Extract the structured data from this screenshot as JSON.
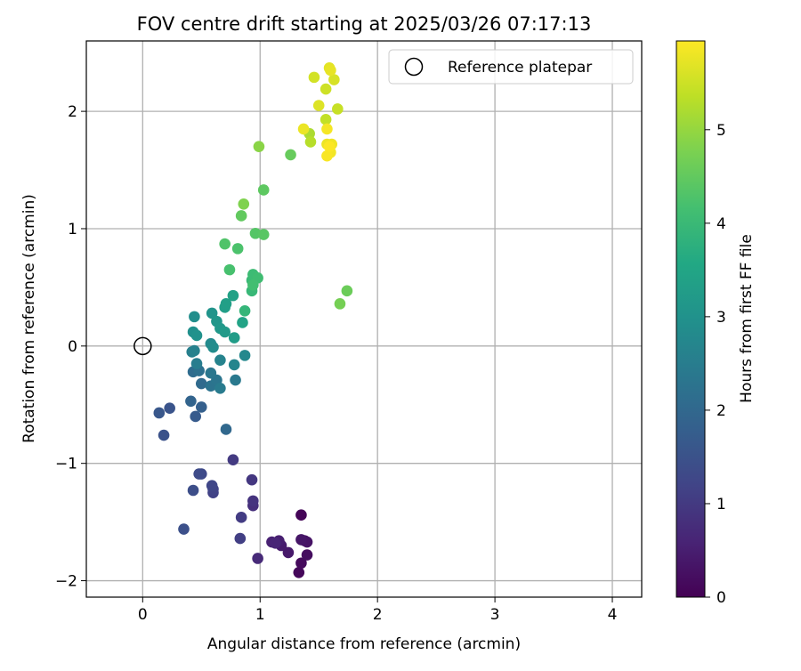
{
  "chart_data": {
    "type": "scatter",
    "title": "FOV centre drift starting at 2025/03/26 07:17:13",
    "xlabel": "Angular distance from reference (arcmin)",
    "ylabel": "Rotation from reference (arcmin)",
    "xlim": [
      -0.48,
      4.25
    ],
    "ylim": [
      -2.14,
      2.6
    ],
    "xticks": [
      0,
      1,
      2,
      3,
      4
    ],
    "yticks": [
      -2,
      -1,
      0,
      1,
      2
    ],
    "grid": true,
    "legend": {
      "position": "top-right",
      "entries": [
        "Reference platepar"
      ]
    },
    "reference_point": {
      "x": 0,
      "y": 0,
      "label": "Reference platepar"
    },
    "colorbar": {
      "label": "Hours from first FF file",
      "colormap": "viridis",
      "range": [
        0,
        5.95
      ],
      "ticks": [
        0,
        1,
        2,
        3,
        4,
        5
      ]
    },
    "points": [
      [
        1.35,
        -1.44,
        0.05
      ],
      [
        1.33,
        -1.93,
        0.1
      ],
      [
        1.35,
        -1.85,
        0.15
      ],
      [
        1.4,
        -1.78,
        0.2
      ],
      [
        1.38,
        -1.66,
        0.25
      ],
      [
        1.4,
        -1.67,
        0.3
      ],
      [
        1.35,
        -1.65,
        0.35
      ],
      [
        1.24,
        -1.76,
        0.4
      ],
      [
        1.18,
        -1.7,
        0.45
      ],
      [
        1.16,
        -1.66,
        0.5
      ],
      [
        1.1,
        -1.67,
        0.55
      ],
      [
        1.13,
        -1.68,
        0.62
      ],
      [
        0.98,
        -1.81,
        0.7
      ],
      [
        0.94,
        -1.36,
        0.8
      ],
      [
        0.94,
        -1.32,
        0.88
      ],
      [
        0.93,
        -1.14,
        0.95
      ],
      [
        0.77,
        -0.97,
        1.0
      ],
      [
        0.84,
        -1.46,
        1.05
      ],
      [
        0.83,
        -1.64,
        1.1
      ],
      [
        0.6,
        -1.25,
        1.15
      ],
      [
        0.6,
        -1.22,
        1.2
      ],
      [
        0.59,
        -1.19,
        1.25
      ],
      [
        0.5,
        -1.09,
        1.3
      ],
      [
        0.48,
        -1.09,
        1.35
      ],
      [
        0.43,
        -1.23,
        1.4
      ],
      [
        0.35,
        -1.56,
        1.45
      ],
      [
        0.18,
        -0.76,
        1.5
      ],
      [
        0.23,
        -0.53,
        1.55
      ],
      [
        0.14,
        -0.57,
        1.6
      ],
      [
        0.45,
        -0.6,
        1.7
      ],
      [
        0.5,
        -0.52,
        1.8
      ],
      [
        0.41,
        -0.47,
        1.9
      ],
      [
        0.71,
        -0.71,
        2.0
      ],
      [
        0.5,
        -0.32,
        2.05
      ],
      [
        0.43,
        -0.22,
        2.1
      ],
      [
        0.48,
        -0.21,
        2.2
      ],
      [
        0.58,
        -0.34,
        2.25
      ],
      [
        0.63,
        -0.29,
        2.3
      ],
      [
        0.58,
        -0.23,
        2.35
      ],
      [
        0.79,
        -0.29,
        2.4
      ],
      [
        0.66,
        -0.36,
        2.45
      ],
      [
        0.46,
        -0.15,
        2.5
      ],
      [
        0.42,
        -0.05,
        2.55
      ],
      [
        0.44,
        -0.04,
        2.6
      ],
      [
        0.66,
        -0.12,
        2.65
      ],
      [
        0.78,
        -0.16,
        2.7
      ],
      [
        0.87,
        -0.08,
        2.75
      ],
      [
        0.58,
        0.02,
        2.8
      ],
      [
        0.6,
        -0.01,
        2.85
      ],
      [
        0.44,
        0.25,
        2.9
      ],
      [
        0.43,
        0.12,
        2.95
      ],
      [
        0.46,
        0.09,
        3.0
      ],
      [
        0.59,
        0.28,
        3.05
      ],
      [
        0.63,
        0.21,
        3.1
      ],
      [
        0.66,
        0.15,
        3.15
      ],
      [
        0.7,
        0.12,
        3.2
      ],
      [
        0.78,
        0.07,
        3.25
      ],
      [
        0.7,
        0.33,
        3.3
      ],
      [
        0.71,
        0.36,
        3.35
      ],
      [
        0.77,
        0.43,
        3.4
      ],
      [
        0.85,
        0.2,
        3.45
      ],
      [
        0.87,
        0.3,
        3.9
      ],
      [
        0.93,
        0.47,
        3.95
      ],
      [
        0.93,
        0.56,
        4.0
      ],
      [
        0.94,
        0.61,
        4.05
      ],
      [
        0.98,
        0.58,
        4.1
      ],
      [
        0.94,
        0.52,
        4.15
      ],
      [
        0.74,
        0.65,
        4.2
      ],
      [
        0.81,
        0.83,
        4.25
      ],
      [
        0.7,
        0.87,
        4.3
      ],
      [
        0.96,
        0.96,
        4.35
      ],
      [
        1.03,
        0.95,
        4.4
      ],
      [
        1.03,
        1.33,
        4.45
      ],
      [
        0.84,
        1.11,
        4.5
      ],
      [
        1.26,
        1.63,
        4.55
      ],
      [
        1.74,
        0.47,
        4.6
      ],
      [
        1.68,
        0.36,
        4.7
      ],
      [
        0.86,
        1.21,
        4.8
      ],
      [
        0.99,
        1.7,
        4.9
      ],
      [
        1.42,
        1.81,
        5.2
      ],
      [
        1.43,
        1.74,
        5.3
      ],
      [
        1.56,
        1.93,
        5.4
      ],
      [
        1.66,
        2.02,
        5.45
      ],
      [
        1.56,
        2.19,
        5.5
      ],
      [
        1.46,
        2.29,
        5.55
      ],
      [
        1.63,
        2.27,
        5.6
      ],
      [
        1.5,
        2.05,
        5.65
      ],
      [
        1.59,
        2.37,
        5.7
      ],
      [
        1.6,
        2.35,
        5.75
      ],
      [
        1.37,
        1.85,
        5.78
      ],
      [
        1.57,
        1.72,
        5.8
      ],
      [
        1.61,
        1.72,
        5.82
      ],
      [
        1.6,
        1.65,
        5.85
      ],
      [
        1.57,
        1.85,
        5.88
      ],
      [
        1.57,
        1.62,
        5.9
      ],
      [
        1.59,
        1.7,
        5.93
      ]
    ]
  }
}
